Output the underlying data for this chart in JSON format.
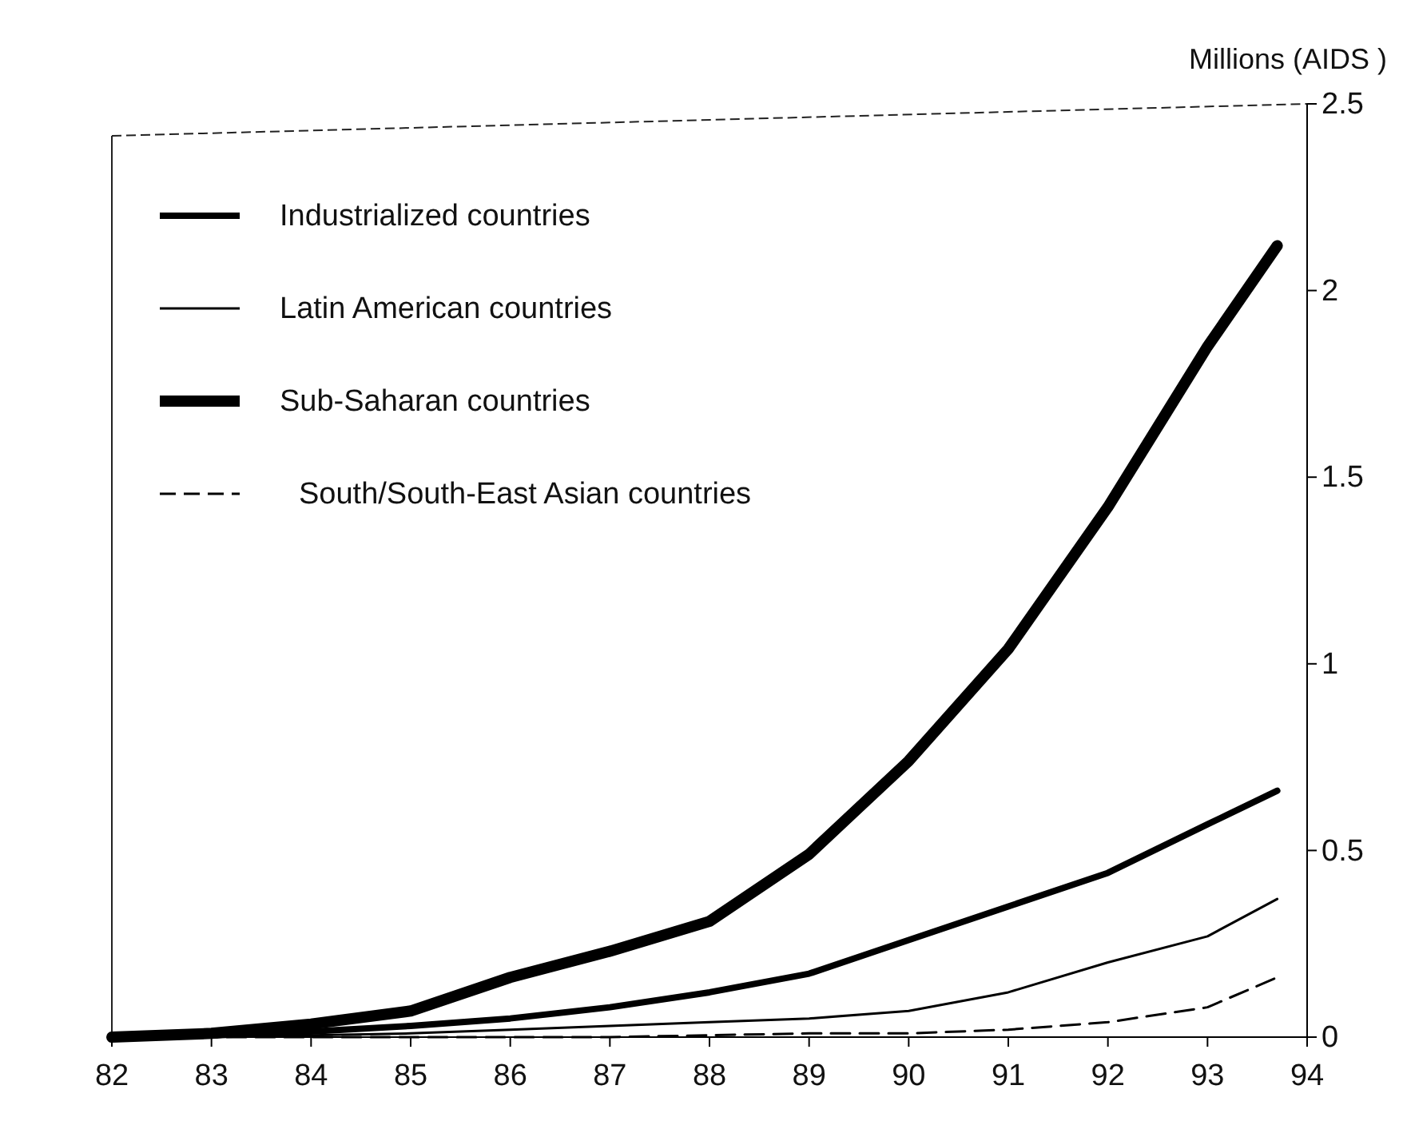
{
  "chart_data": {
    "type": "line",
    "ylabel": "Millions (AIDS )",
    "x": [
      82,
      83,
      84,
      85,
      86,
      87,
      88,
      89,
      90,
      91,
      92,
      93,
      93.7
    ],
    "xlim": [
      82,
      94
    ],
    "xticks": [
      82,
      83,
      84,
      85,
      86,
      87,
      88,
      89,
      90,
      91,
      92,
      93,
      94
    ],
    "ylim": [
      0,
      2.5
    ],
    "yticks": [
      {
        "value": 0,
        "label": "0"
      },
      0.5,
      1,
      1.5,
      2,
      2.5
    ],
    "legend": "top left",
    "grid": false,
    "marker": "none",
    "series": [
      {
        "name": "Industrialized countries",
        "color": "#000000",
        "line_style": "solid",
        "values": [
          0,
          0.005,
          0.015,
          0.03,
          0.05,
          0.08,
          0.12,
          0.17,
          0.26,
          0.35,
          0.44,
          0.57,
          0.66
        ]
      },
      {
        "name": "Latin American countries",
        "color": "#000000",
        "line_style": "solid",
        "values": [
          0,
          0,
          0.005,
          0.01,
          0.02,
          0.03,
          0.04,
          0.05,
          0.07,
          0.12,
          0.2,
          0.27,
          0.37
        ]
      },
      {
        "name": "Sub-Saharan countries",
        "color": "#000000",
        "line_style": "solid",
        "values": [
          0,
          0.01,
          0.035,
          0.07,
          0.16,
          0.23,
          0.31,
          0.49,
          0.74,
          1.04,
          1.42,
          1.85,
          2.12
        ]
      },
      {
        "name": "South/South-East Asian countries",
        "color": "#000000",
        "line_style": "dashed",
        "values": [
          0,
          0,
          0,
          0,
          0,
          0,
          0.005,
          0.01,
          0.01,
          0.02,
          0.04,
          0.08,
          0.16
        ]
      }
    ]
  }
}
